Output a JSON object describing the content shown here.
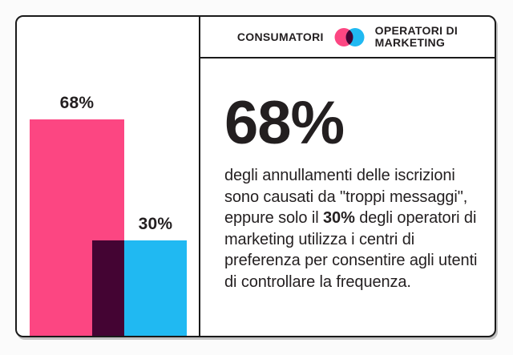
{
  "colors": {
    "pink": "#FC4682",
    "blue": "#20B9F2",
    "overlap": "#440433",
    "ink": "#231F20",
    "border": "#1A1A1A",
    "page_bg": "#FBFBFB",
    "card_bg": "#FFFFFF"
  },
  "legend": {
    "consumers_label": "CONSUMATORI",
    "marketers_label_lines": [
      "OPERATORI DI",
      "MARKETING"
    ],
    "icon": "venn-overlap-icon"
  },
  "chart_data": {
    "type": "bar",
    "categories": [
      "Consumatori",
      "Operatori di marketing"
    ],
    "values": [
      68,
      30
    ],
    "value_labels": [
      "68%",
      "30%"
    ],
    "unit": "%",
    "ylim": [
      0,
      100
    ],
    "legend_position": "top-right-header",
    "axes": "none",
    "style_note": "two overlapping bars; intersection area shaded dark plum"
  },
  "stat": {
    "headline": "68%",
    "body_segments": [
      {
        "text": "degli annullamenti delle iscrizioni sono causati da \"troppi messaggi\", eppure solo il ",
        "bold": false
      },
      {
        "text": "30%",
        "bold": true
      },
      {
        "text": " degli operatori di marketing utilizza i centri di preferenza per consentire agli utenti di controllare la frequenza.",
        "bold": false
      }
    ],
    "body_text": "degli annullamenti delle iscrizioni sono causati da \"troppi messaggi\", eppure solo il 30% degli operatori di marketing utilizza i centri di preferenza per consentire agli utenti di controllare la frequenza."
  }
}
